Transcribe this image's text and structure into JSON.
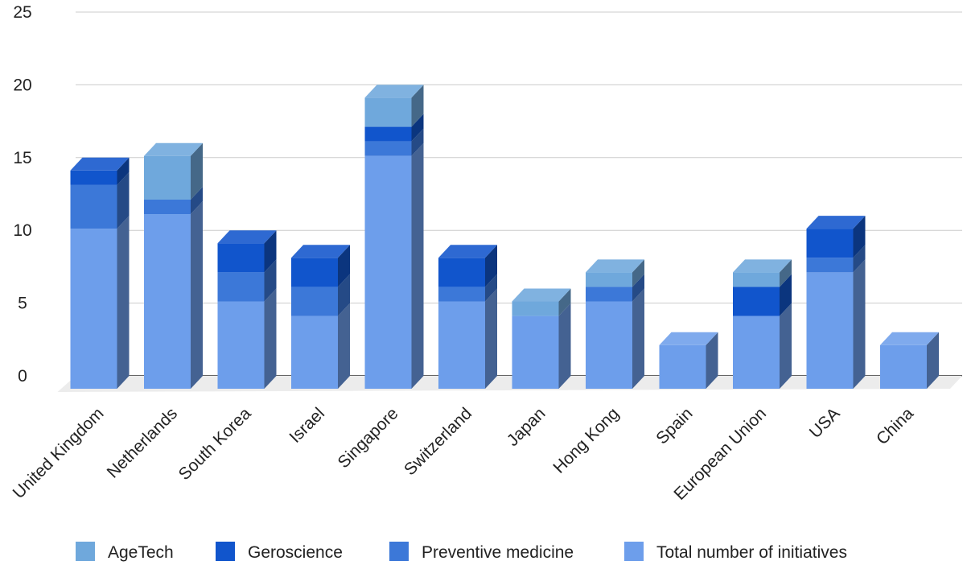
{
  "chart_data": {
    "type": "bar",
    "stacked": true,
    "three_d": true,
    "categories": [
      "United Kingdom",
      "Netherlands",
      "South Korea",
      "Israel",
      "Singapore",
      "Switzerland",
      "Japan",
      "Hong Kong",
      "Spain",
      "European Union",
      "USA",
      "China"
    ],
    "series": [
      {
        "name": "Total number of initiatives",
        "color": "#6d9eeb",
        "values": [
          11,
          12,
          6,
          5,
          16,
          6,
          5,
          6,
          3,
          5,
          8,
          3
        ]
      },
      {
        "name": "Preventive medicine",
        "color": "#3c78d8",
        "values": [
          3,
          1,
          2,
          2,
          1,
          1,
          0,
          1,
          0,
          0,
          1,
          0
        ]
      },
      {
        "name": "Geroscience",
        "color": "#1155cc",
        "values": [
          1,
          0,
          2,
          2,
          1,
          2,
          0,
          0,
          0,
          2,
          2,
          0
        ]
      },
      {
        "name": "AgeTech",
        "color": "#6fa8dc",
        "values": [
          0,
          3,
          0,
          0,
          2,
          0,
          1,
          1,
          0,
          1,
          0,
          0
        ]
      }
    ],
    "legend_order": [
      "AgeTech",
      "Geroscience",
      "Preventive medicine",
      "Total number of initiatives"
    ],
    "yticks": [
      "0",
      "5",
      "10",
      "15",
      "20",
      "25"
    ],
    "ylim": [
      0,
      25
    ],
    "grid": true,
    "legend_position": "bottom",
    "title": "",
    "xlabel": "",
    "ylabel": ""
  }
}
